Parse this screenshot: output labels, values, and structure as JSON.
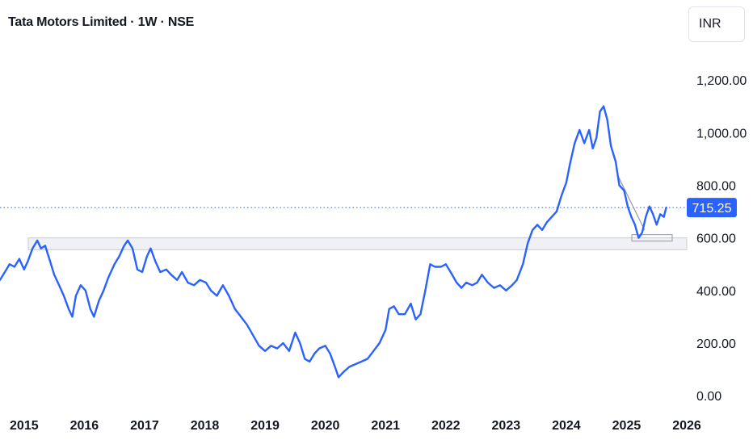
{
  "header": {
    "title": "Tata Motors Limited · 1W · NSE",
    "currency": "INR"
  },
  "chart_data": {
    "type": "line",
    "title": "Tata Motors Limited · 1W · NSE",
    "xlabel": "",
    "ylabel": "",
    "y_ticks": [
      "0.00",
      "200.00",
      "400.00",
      "600.00",
      "800.00",
      "1,000.00",
      "1,200.00"
    ],
    "y_tick_values": [
      0,
      200,
      400,
      600,
      800,
      1000,
      1200
    ],
    "x_ticks": [
      "2015",
      "2016",
      "2017",
      "2018",
      "2019",
      "2020",
      "2021",
      "2022",
      "2023",
      "2024",
      "2025",
      "2026"
    ],
    "x_tick_values": [
      2015,
      2016,
      2017,
      2018,
      2019,
      2020,
      2021,
      2022,
      2023,
      2024,
      2025,
      2026
    ],
    "xlim": [
      2014.6,
      2026.0
    ],
    "ylim": [
      -30,
      1320
    ],
    "grid": false,
    "line_color": "#2962ff",
    "last_price": 715.25,
    "last_price_label": "715.25",
    "support_zone": [
      555,
      600
    ],
    "series": [
      {
        "values": [
          [
            2014.6,
            440
          ],
          [
            2014.68,
            470
          ],
          [
            2014.76,
            500
          ],
          [
            2014.84,
            490
          ],
          [
            2014.92,
            520
          ],
          [
            2015.0,
            480
          ],
          [
            2015.06,
            510
          ],
          [
            2015.14,
            560
          ],
          [
            2015.22,
            590
          ],
          [
            2015.28,
            560
          ],
          [
            2015.35,
            570
          ],
          [
            2015.42,
            520
          ],
          [
            2015.5,
            460
          ],
          [
            2015.58,
            420
          ],
          [
            2015.66,
            380
          ],
          [
            2015.74,
            330
          ],
          [
            2015.8,
            300
          ],
          [
            2015.86,
            380
          ],
          [
            2015.94,
            420
          ],
          [
            2016.02,
            400
          ],
          [
            2016.1,
            330
          ],
          [
            2016.16,
            300
          ],
          [
            2016.24,
            360
          ],
          [
            2016.32,
            400
          ],
          [
            2016.4,
            450
          ],
          [
            2016.5,
            500
          ],
          [
            2016.58,
            530
          ],
          [
            2016.66,
            570
          ],
          [
            2016.72,
            590
          ],
          [
            2016.8,
            560
          ],
          [
            2016.88,
            480
          ],
          [
            2016.96,
            470
          ],
          [
            2017.04,
            530
          ],
          [
            2017.1,
            560
          ],
          [
            2017.18,
            510
          ],
          [
            2017.26,
            470
          ],
          [
            2017.36,
            480
          ],
          [
            2017.44,
            460
          ],
          [
            2017.54,
            440
          ],
          [
            2017.62,
            470
          ],
          [
            2017.72,
            430
          ],
          [
            2017.82,
            420
          ],
          [
            2017.92,
            440
          ],
          [
            2018.02,
            430
          ],
          [
            2018.1,
            400
          ],
          [
            2018.2,
            380
          ],
          [
            2018.3,
            420
          ],
          [
            2018.4,
            380
          ],
          [
            2018.5,
            330
          ],
          [
            2018.6,
            300
          ],
          [
            2018.7,
            270
          ],
          [
            2018.8,
            230
          ],
          [
            2018.9,
            190
          ],
          [
            2019.0,
            170
          ],
          [
            2019.1,
            190
          ],
          [
            2019.2,
            180
          ],
          [
            2019.3,
            200
          ],
          [
            2019.4,
            170
          ],
          [
            2019.5,
            240
          ],
          [
            2019.58,
            200
          ],
          [
            2019.66,
            140
          ],
          [
            2019.74,
            130
          ],
          [
            2019.82,
            160
          ],
          [
            2019.9,
            180
          ],
          [
            2020.0,
            190
          ],
          [
            2020.08,
            160
          ],
          [
            2020.16,
            110
          ],
          [
            2020.22,
            70
          ],
          [
            2020.3,
            90
          ],
          [
            2020.4,
            110
          ],
          [
            2020.5,
            120
          ],
          [
            2020.6,
            130
          ],
          [
            2020.7,
            140
          ],
          [
            2020.8,
            170
          ],
          [
            2020.9,
            200
          ],
          [
            2021.0,
            250
          ],
          [
            2021.06,
            330
          ],
          [
            2021.14,
            340
          ],
          [
            2021.22,
            310
          ],
          [
            2021.32,
            310
          ],
          [
            2021.42,
            350
          ],
          [
            2021.5,
            290
          ],
          [
            2021.58,
            310
          ],
          [
            2021.66,
            400
          ],
          [
            2021.74,
            500
          ],
          [
            2021.82,
            490
          ],
          [
            2021.92,
            490
          ],
          [
            2022.0,
            500
          ],
          [
            2022.08,
            470
          ],
          [
            2022.18,
            430
          ],
          [
            2022.26,
            410
          ],
          [
            2022.34,
            430
          ],
          [
            2022.44,
            420
          ],
          [
            2022.52,
            430
          ],
          [
            2022.6,
            460
          ],
          [
            2022.7,
            430
          ],
          [
            2022.8,
            410
          ],
          [
            2022.9,
            420
          ],
          [
            2023.0,
            400
          ],
          [
            2023.1,
            420
          ],
          [
            2023.18,
            440
          ],
          [
            2023.28,
            500
          ],
          [
            2023.36,
            580
          ],
          [
            2023.44,
            630
          ],
          [
            2023.52,
            650
          ],
          [
            2023.6,
            630
          ],
          [
            2023.68,
            660
          ],
          [
            2023.76,
            680
          ],
          [
            2023.84,
            700
          ],
          [
            2023.92,
            760
          ],
          [
            2024.0,
            810
          ],
          [
            2024.06,
            880
          ],
          [
            2024.14,
            960
          ],
          [
            2024.22,
            1010
          ],
          [
            2024.3,
            960
          ],
          [
            2024.38,
            1010
          ],
          [
            2024.44,
            940
          ],
          [
            2024.5,
            980
          ],
          [
            2024.56,
            1080
          ],
          [
            2024.62,
            1100
          ],
          [
            2024.68,
            1050
          ],
          [
            2024.74,
            950
          ],
          [
            2024.82,
            890
          ],
          [
            2024.88,
            800
          ],
          [
            2024.96,
            780
          ],
          [
            2025.02,
            720
          ],
          [
            2025.08,
            680
          ],
          [
            2025.14,
            650
          ],
          [
            2025.2,
            600
          ],
          [
            2025.26,
            620
          ],
          [
            2025.32,
            680
          ],
          [
            2025.38,
            720
          ],
          [
            2025.44,
            690
          ],
          [
            2025.5,
            650
          ],
          [
            2025.56,
            690
          ],
          [
            2025.62,
            680
          ],
          [
            2025.66,
            715.25
          ]
        ]
      }
    ]
  }
}
